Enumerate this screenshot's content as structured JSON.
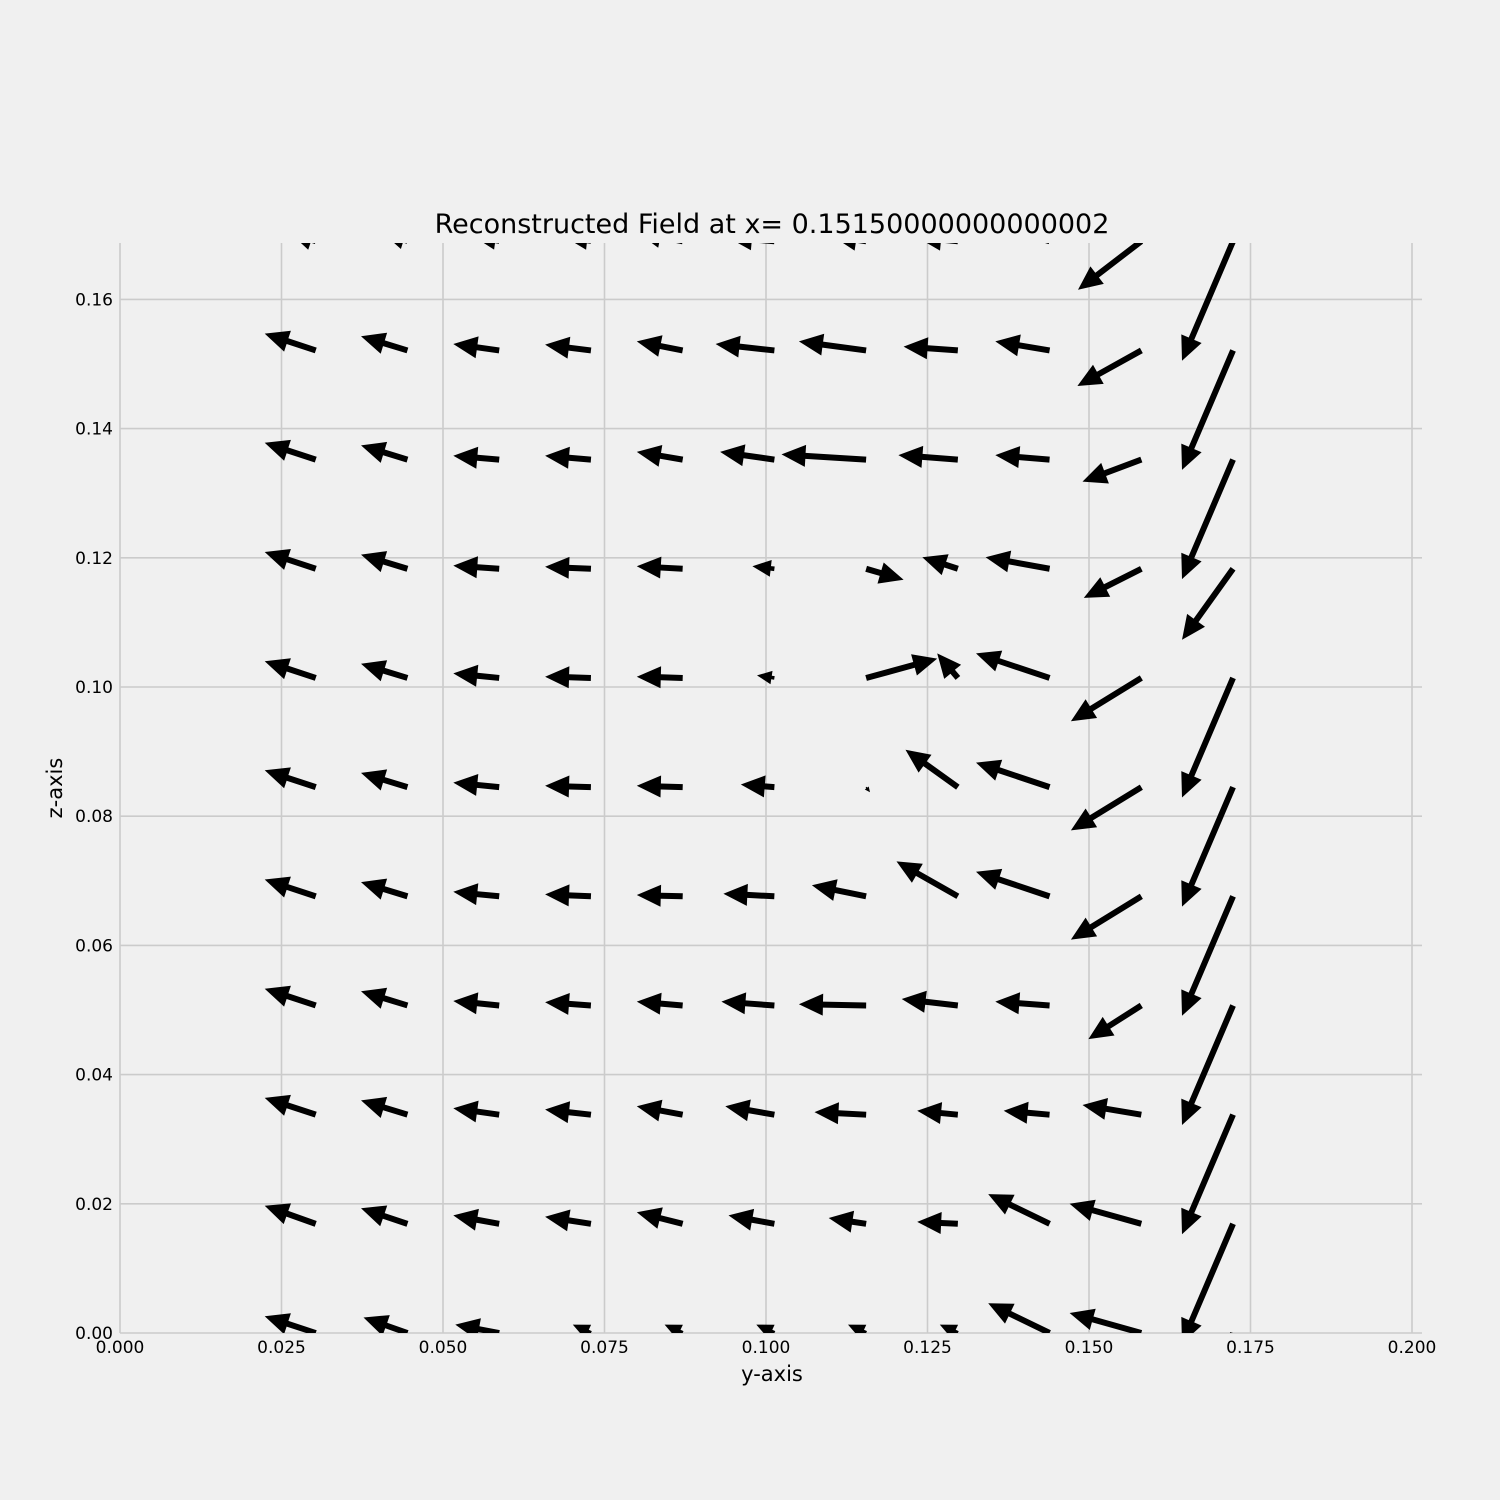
{
  "chart_data": {
    "type": "quiver",
    "title": "Reconstructed Field at x= 0.15150000000000002",
    "xlabel": "y-axis",
    "ylabel": "z-axis",
    "xlim": [
      0.0,
      0.2
    ],
    "ylim": [
      0.0,
      0.169
    ],
    "xticks": [
      "0.000",
      "0.025",
      "0.050",
      "0.075",
      "0.100",
      "0.125",
      "0.150",
      "0.175",
      "0.200"
    ],
    "yticks": [
      "0.00",
      "0.02",
      "0.04",
      "0.06",
      "0.08",
      "0.10",
      "0.12",
      "0.14",
      "0.16"
    ],
    "grid": true,
    "colors": {
      "background": "#f0f0f0",
      "grid": "#cbcbcb",
      "arrow": "#000000"
    },
    "x": [
      0.0303,
      0.0445,
      0.0587,
      0.0729,
      0.0871,
      0.1013,
      0.1155,
      0.1297,
      0.1439,
      0.1581,
      0.1723
    ],
    "z": [
      0.0,
      0.0169,
      0.0338,
      0.0507,
      0.0676,
      0.0845,
      0.1014,
      0.1183,
      0.1352,
      0.1521,
      0.169
    ],
    "vectors": [
      [
        [
          -0.0079,
          0.0026
        ],
        [
          -0.0068,
          0.0024
        ],
        [
          -0.0068,
          0.0013
        ],
        [
          -0.0028,
          0.0013
        ],
        [
          -0.0028,
          0.0013
        ],
        [
          -0.0028,
          0.0013
        ],
        [
          -0.0028,
          0.0013
        ],
        [
          -0.0028,
          0.0013
        ],
        [
          -0.0095,
          0.0046
        ],
        [
          -0.0111,
          0.0031
        ],
        [
          -0.0055,
          -0.0176
        ]
      ],
      [
        [
          -0.0079,
          0.0028
        ],
        [
          -0.0072,
          0.0024
        ],
        [
          -0.0071,
          0.0013
        ],
        [
          -0.0071,
          0.0011
        ],
        [
          -0.0071,
          0.0018
        ],
        [
          -0.0071,
          0.0013
        ],
        [
          -0.0058,
          0.0009
        ],
        [
          -0.0063,
          0.0003
        ],
        [
          -0.0095,
          0.0046
        ],
        [
          -0.0111,
          0.0031
        ],
        [
          -0.0079,
          -0.0185
        ]
      ],
      [
        [
          -0.0079,
          0.0026
        ],
        [
          -0.0072,
          0.0022
        ],
        [
          -0.0071,
          0.001
        ],
        [
          -0.0071,
          0.0008
        ],
        [
          -0.0071,
          0.0013
        ],
        [
          -0.0076,
          0.0013
        ],
        [
          -0.008,
          0.0004
        ],
        [
          -0.0063,
          0.0006
        ],
        [
          -0.0071,
          0.0006
        ],
        [
          -0.0091,
          0.0015
        ],
        [
          -0.0079,
          -0.0185
        ]
      ],
      [
        [
          -0.0079,
          0.0026
        ],
        [
          -0.0072,
          0.0022
        ],
        [
          -0.0071,
          0.0007
        ],
        [
          -0.0071,
          0.0005
        ],
        [
          -0.0071,
          0.0006
        ],
        [
          -0.0082,
          0.0006
        ],
        [
          -0.0104,
          0.0002
        ],
        [
          -0.0087,
          0.001
        ],
        [
          -0.0084,
          0.0006
        ],
        [
          -0.0082,
          -0.0052
        ],
        [
          -0.0079,
          -0.0185
        ]
      ],
      [
        [
          -0.0079,
          0.0026
        ],
        [
          -0.0072,
          0.0022
        ],
        [
          -0.0071,
          0.0007
        ],
        [
          -0.0071,
          0.0003
        ],
        [
          -0.0071,
          0.0002
        ],
        [
          -0.0079,
          0.0004
        ],
        [
          -0.0084,
          0.0017
        ],
        [
          -0.0095,
          0.0054
        ],
        [
          -0.0114,
          0.0038
        ],
        [
          -0.0109,
          -0.0067
        ],
        [
          -0.0079,
          -0.0185
        ]
      ],
      [
        [
          -0.0079,
          0.0026
        ],
        [
          -0.0072,
          0.0022
        ],
        [
          -0.0071,
          0.0007
        ],
        [
          -0.0071,
          0.0002
        ],
        [
          -0.0071,
          0.0002
        ],
        [
          -0.0052,
          0.0004
        ],
        [
          0.0006,
          -0.0008
        ],
        [
          -0.0081,
          0.0058
        ],
        [
          -0.0114,
          0.0038
        ],
        [
          -0.0109,
          -0.0067
        ],
        [
          -0.0079,
          -0.0185
        ]
      ],
      [
        [
          -0.0079,
          0.0026
        ],
        [
          -0.0072,
          0.0022
        ],
        [
          -0.0071,
          0.0007
        ],
        [
          -0.0071,
          0.0002
        ],
        [
          -0.0071,
          0.0002
        ],
        [
          -0.0027,
          0.0004
        ],
        [
          0.011,
          0.003
        ],
        [
          -0.0032,
          0.0038
        ],
        [
          -0.0114,
          0.0038
        ],
        [
          -0.0109,
          -0.0067
        ],
        [
          -0.0079,
          -0.0185
        ]
      ],
      [
        [
          -0.0079,
          0.0026
        ],
        [
          -0.0072,
          0.0022
        ],
        [
          -0.0071,
          0.0005
        ],
        [
          -0.0071,
          0.0003
        ],
        [
          -0.0071,
          0.0004
        ],
        [
          -0.0034,
          0.0004
        ],
        [
          0.0058,
          -0.0017
        ],
        [
          -0.0055,
          0.0018
        ],
        [
          -0.0099,
          0.0018
        ],
        [
          -0.0089,
          -0.0045
        ],
        [
          -0.0079,
          -0.011
        ]
      ],
      [
        [
          -0.0079,
          0.0026
        ],
        [
          -0.0072,
          0.0022
        ],
        [
          -0.0071,
          0.0006
        ],
        [
          -0.0071,
          0.0006
        ],
        [
          -0.0071,
          0.0012
        ],
        [
          -0.0084,
          0.0012
        ],
        [
          -0.0131,
          0.0008
        ],
        [
          -0.0092,
          0.0007
        ],
        [
          -0.0084,
          0.0007
        ],
        [
          -0.0091,
          -0.0034
        ],
        [
          -0.0079,
          -0.0185
        ]
      ],
      [
        [
          -0.0079,
          0.0026
        ],
        [
          -0.0072,
          0.0022
        ],
        [
          -0.0071,
          0.001
        ],
        [
          -0.0071,
          0.0009
        ],
        [
          -0.0071,
          0.0014
        ],
        [
          -0.0091,
          0.001
        ],
        [
          -0.0104,
          0.0014
        ],
        [
          -0.0084,
          0.0006
        ],
        [
          -0.0084,
          0.0014
        ],
        [
          -0.0099,
          -0.0055
        ],
        [
          -0.0079,
          -0.0185
        ]
      ],
      [
        [
          -0.004,
          0.0013
        ],
        [
          -0.0036,
          0.0011
        ],
        [
          -0.0036,
          0.0005
        ],
        [
          -0.0036,
          0.0004
        ],
        [
          -0.0071,
          0.0014
        ],
        [
          -0.0072,
          0.0006
        ],
        [
          -0.0052,
          0.0008
        ],
        [
          -0.0063,
          0.0006
        ],
        [
          -0.0084,
          0.0025
        ],
        [
          -0.0098,
          -0.0075
        ],
        [
          -0.0079,
          -0.0185
        ]
      ]
    ]
  }
}
